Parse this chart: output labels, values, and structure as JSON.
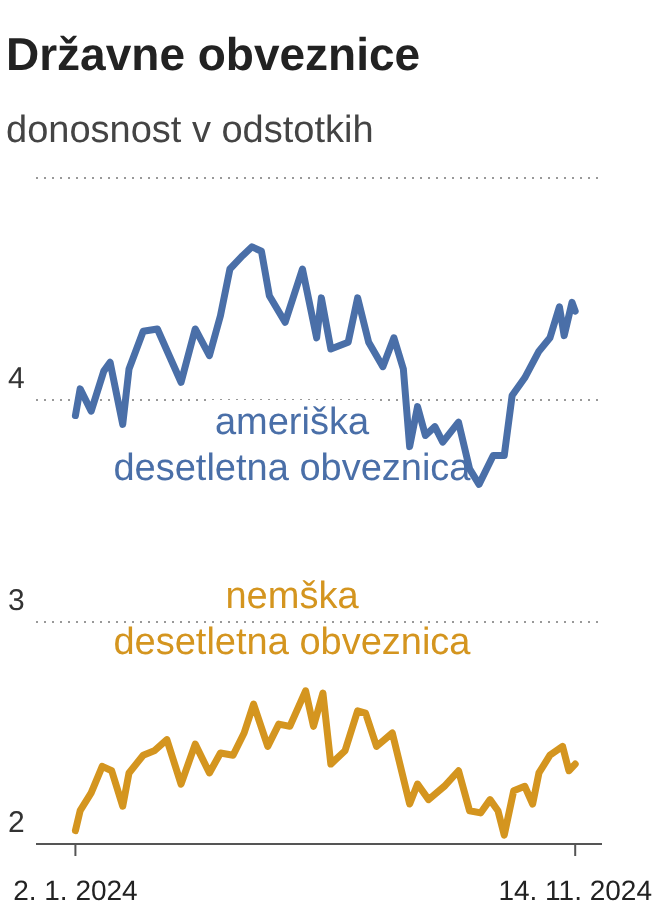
{
  "chart_data": {
    "type": "line",
    "title": "Državne obveznice",
    "subtitle": "donosnost v odstotkih",
    "xlim": [
      "2023-12-08",
      "2024-12-01"
    ],
    "xticks": [
      {
        "value": "2024-01-02",
        "label": "2. 1. 2024"
      },
      {
        "value": "2024-11-14",
        "label": "14. 11. 2024"
      }
    ],
    "ylim": [
      2,
      5
    ],
    "yticks": [
      2,
      3,
      4,
      {
        "value": 5,
        "label": null
      }
    ],
    "grid": "y",
    "line_style": "solid",
    "marker": "none",
    "legend": false,
    "series": [
      {
        "name": "ameriška desetletna obveznica",
        "color": "#4a6fa8",
        "x": [
          "2024-01-02",
          "2024-01-05",
          "2024-01-12",
          "2024-01-20",
          "2024-01-24",
          "2024-02-01",
          "2024-02-05",
          "2024-02-14",
          "2024-02-23",
          "2024-03-09",
          "2024-03-18",
          "2024-03-27",
          "2024-04-03",
          "2024-04-09",
          "2024-04-17",
          "2024-04-23",
          "2024-04-29",
          "2024-05-04",
          "2024-05-14",
          "2024-05-25",
          "2024-06-03",
          "2024-06-06",
          "2024-06-12",
          "2024-06-23",
          "2024-06-29",
          "2024-07-06",
          "2024-07-15",
          "2024-07-22",
          "2024-07-28",
          "2024-08-01",
          "2024-08-06",
          "2024-08-11",
          "2024-08-17",
          "2024-08-22",
          "2024-09-01",
          "2024-09-08",
          "2024-09-14",
          "2024-09-23",
          "2024-09-30",
          "2024-10-05",
          "2024-10-13",
          "2024-10-22",
          "2024-10-29",
          "2024-11-04",
          "2024-11-07",
          "2024-11-12",
          "2024-11-14"
        ],
        "values": [
          3.93,
          4.05,
          3.95,
          4.13,
          4.17,
          3.89,
          4.14,
          4.31,
          4.32,
          4.08,
          4.32,
          4.2,
          4.38,
          4.59,
          4.65,
          4.69,
          4.67,
          4.47,
          4.35,
          4.59,
          4.28,
          4.46,
          4.23,
          4.26,
          4.46,
          4.26,
          4.15,
          4.28,
          4.14,
          3.79,
          3.97,
          3.84,
          3.88,
          3.81,
          3.9,
          3.69,
          3.62,
          3.75,
          3.75,
          4.02,
          4.1,
          4.22,
          4.28,
          4.42,
          4.29,
          4.44,
          4.4
        ]
      },
      {
        "name": "nemška desetletna obveznica",
        "color": "#d4951f",
        "x": [
          "2024-01-02",
          "2024-01-05",
          "2024-01-12",
          "2024-01-19",
          "2024-01-25",
          "2024-02-01",
          "2024-02-05",
          "2024-02-14",
          "2024-02-21",
          "2024-02-29",
          "2024-03-09",
          "2024-03-18",
          "2024-03-27",
          "2024-04-03",
          "2024-04-11",
          "2024-04-18",
          "2024-04-24",
          "2024-05-03",
          "2024-05-10",
          "2024-05-17",
          "2024-05-27",
          "2024-06-01",
          "2024-06-07",
          "2024-06-12",
          "2024-06-21",
          "2024-06-29",
          "2024-07-04",
          "2024-07-11",
          "2024-07-21",
          "2024-08-01",
          "2024-08-06",
          "2024-08-13",
          "2024-08-23",
          "2024-09-01",
          "2024-09-08",
          "2024-09-15",
          "2024-09-21",
          "2024-09-26",
          "2024-09-30",
          "2024-10-06",
          "2024-10-13",
          "2024-10-18",
          "2024-10-22",
          "2024-10-29",
          "2024-11-06",
          "2024-11-10",
          "2024-11-14"
        ],
        "values": [
          2.06,
          2.15,
          2.23,
          2.35,
          2.33,
          2.17,
          2.32,
          2.4,
          2.42,
          2.47,
          2.27,
          2.45,
          2.32,
          2.41,
          2.4,
          2.5,
          2.63,
          2.44,
          2.54,
          2.53,
          2.69,
          2.53,
          2.68,
          2.36,
          2.42,
          2.6,
          2.59,
          2.44,
          2.5,
          2.18,
          2.27,
          2.2,
          2.26,
          2.33,
          2.15,
          2.14,
          2.2,
          2.15,
          2.04,
          2.24,
          2.26,
          2.18,
          2.32,
          2.4,
          2.44,
          2.33,
          2.36
        ]
      }
    ]
  }
}
